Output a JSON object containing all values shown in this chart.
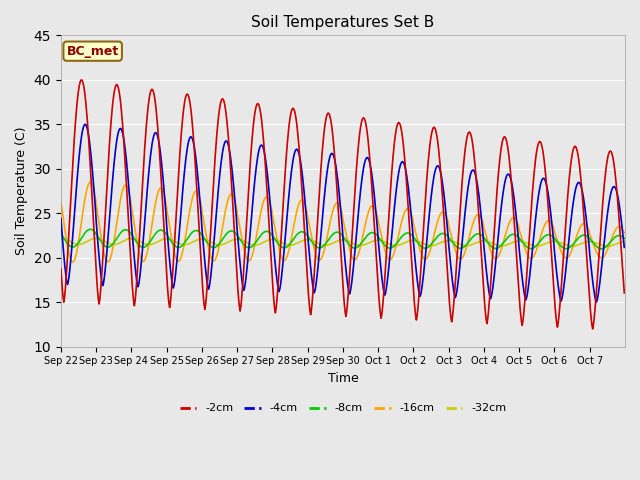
{
  "title": "Soil Temperatures Set B",
  "xlabel": "Time",
  "ylabel": "Soil Temperature (C)",
  "annotation": "BC_met",
  "ylim": [
    10,
    45
  ],
  "plot_bg_color": "#e8e8e8",
  "fig_bg_color": "#e8e8e8",
  "series": {
    "-2cm": {
      "color": "#cc0000",
      "lw": 1.2
    },
    "-4cm": {
      "color": "#0000cc",
      "lw": 1.2
    },
    "-8cm": {
      "color": "#00cc00",
      "lw": 1.2
    },
    "-16cm": {
      "color": "#ffa500",
      "lw": 1.2
    },
    "-32cm": {
      "color": "#cccc00",
      "lw": 1.2
    }
  },
  "xtick_labels": [
    "Sep 22",
    "Sep 23",
    "Sep 24",
    "Sep 25",
    "Sep 26",
    "Sep 27",
    "Sep 28",
    "Sep 29",
    "Sep 30",
    "Oct 1",
    "Oct 2",
    "Oct 3",
    "Oct 4",
    "Oct 5",
    "Oct 6",
    "Oct 7"
  ],
  "n_days": 16,
  "hours_per_day": 24
}
